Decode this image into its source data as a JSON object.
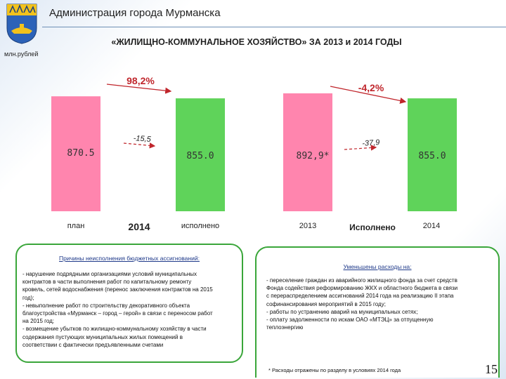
{
  "header": {
    "org_title": "Администрация города Мурманска",
    "slide_title": "«ЖИЛИЩНО-КОММУНАЛЬНОЕ ХОЗЯЙСТВО» ЗА 2013 и 2014 ГОДЫ",
    "unit": "млн.рублей"
  },
  "colors": {
    "plan": "#ff85ae",
    "actual": "#5fd35a",
    "accent_red": "#c0262c",
    "panel_border": "#3aa63a"
  },
  "chart_data": [
    {
      "type": "bar",
      "group_label": "2014",
      "categories": [
        "план",
        "исполнено"
      ],
      "values": [
        870.5,
        855.0
      ],
      "value_labels": [
        "870.5",
        "855.0"
      ],
      "annotations": {
        "percent": "98,2%",
        "diff": "-15,5"
      }
    },
    {
      "type": "bar",
      "group_label": "",
      "categories": [
        "2013",
        "2014"
      ],
      "category_note": "Исполнено",
      "values": [
        892.9,
        855.0
      ],
      "value_labels": [
        "892,9*",
        "855.0"
      ],
      "annotations": {
        "percent": "-4,2%",
        "diff": "-37,9"
      }
    }
  ],
  "left_panel": {
    "heading": "Причины неисполнения бюджетных ассигнований:",
    "lines": [
      "- нарушение подрядными организациями условий муниципальных",
      "контрактов в части выполнения работ по капитальному ремонту",
      "кровель, сетей водоснабжения (перенос заключения контрактов на 2015",
      "год);",
      "- невыполнение работ по строительству декоративного объекта",
      "благоустройства «Мурманск – город – герой» в связи с переносом работ",
      "на 2015 год;",
      "- возмещение убытков по жилищно-коммунальному хозяйству в части",
      "содержания пустующих муниципальных жилых помещений в",
      "соответствии с фактически предъявленными счетами"
    ]
  },
  "right_panel": {
    "heading": "Уменьшены расходы на:",
    "lines": [
      "- переселение граждан из аварийного жилищного фонда за счет средств",
      "Фонда содействия реформированию ЖКХ и областного бюджета в связи",
      "с перераспределением ассигнований 2014 года на реализацию II этапа",
      "софинансирования мероприятий в 2015 году;",
      "- работы по устранению аварий на муниципальных сетях;",
      "- оплату задолженности по искам ОАО «МТЭЦ» за отпущенную",
      "теплоэнергию"
    ]
  },
  "footnote": "* Расходы отражены по разделу в условиях 2014 года",
  "page_number": "15"
}
